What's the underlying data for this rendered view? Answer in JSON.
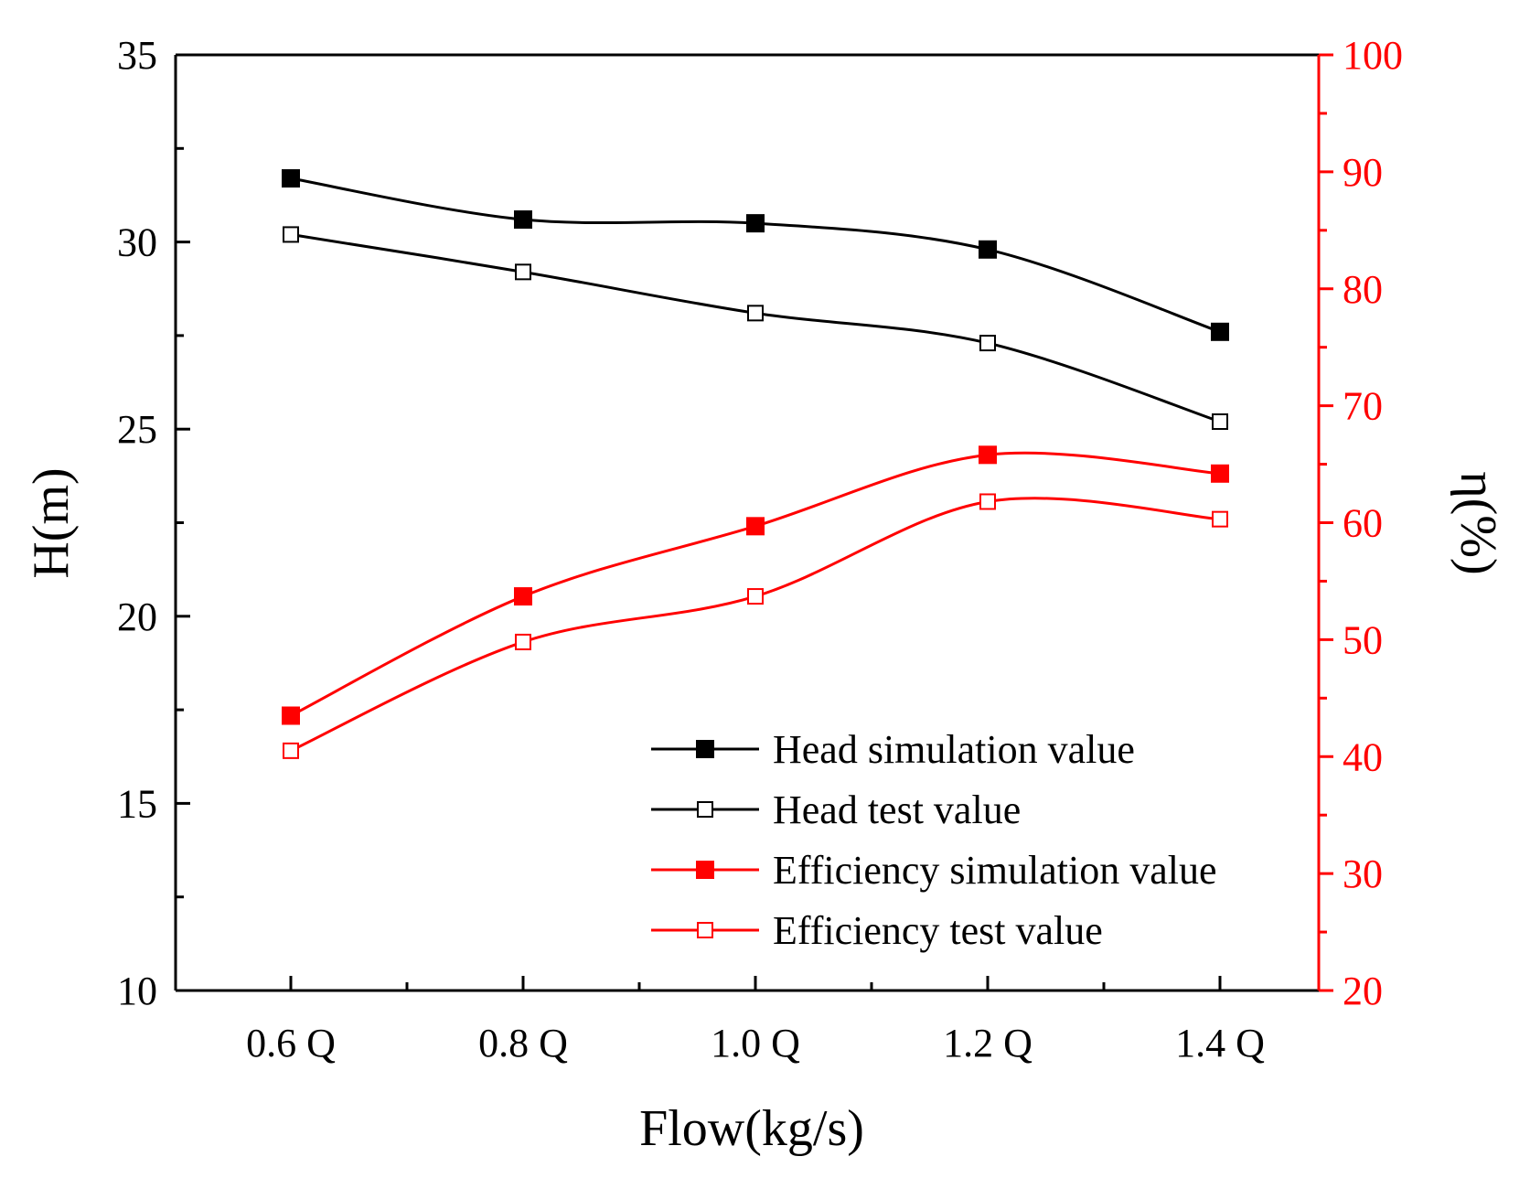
{
  "chart_data": {
    "type": "line",
    "title": "",
    "xlabel": "Flow(kg/s)",
    "ylabel_left": "H(m)",
    "ylabel_right": "η(%)",
    "categories": [
      "0.6 Q",
      "0.8 Q",
      "1.0 Q",
      "1.2 Q",
      "1.4 Q"
    ],
    "y_left": {
      "lim": [
        10,
        35
      ],
      "ticks": [
        "10",
        "15",
        "20",
        "25",
        "30",
        "35"
      ],
      "tick_values": [
        10,
        15,
        20,
        25,
        30,
        35
      ]
    },
    "y_right": {
      "lim": [
        20,
        100
      ],
      "ticks": [
        "20",
        "30",
        "40",
        "50",
        "60",
        "70",
        "80",
        "90",
        "100"
      ],
      "tick_values": [
        20,
        30,
        40,
        50,
        60,
        70,
        80,
        90,
        100
      ]
    },
    "legend_position": "bottom-right",
    "series": [
      {
        "name": "Head simulation value",
        "axis": "left",
        "color": "#000000",
        "marker": "filled-square",
        "values": [
          31.7,
          30.6,
          30.5,
          29.8,
          27.6
        ]
      },
      {
        "name": "Head test value",
        "axis": "left",
        "color": "#000000",
        "marker": "open-square",
        "values": [
          30.2,
          29.2,
          28.1,
          27.3,
          25.2
        ]
      },
      {
        "name": "Efficiency simulation value",
        "axis": "right",
        "color": "#ff0000",
        "marker": "filled-square",
        "values": [
          43.5,
          53.7,
          59.7,
          65.8,
          64.2
        ]
      },
      {
        "name": "Efficiency test value",
        "axis": "right",
        "color": "#ff0000",
        "marker": "open-square",
        "values": [
          40.5,
          49.8,
          53.7,
          61.8,
          60.3
        ]
      }
    ]
  }
}
